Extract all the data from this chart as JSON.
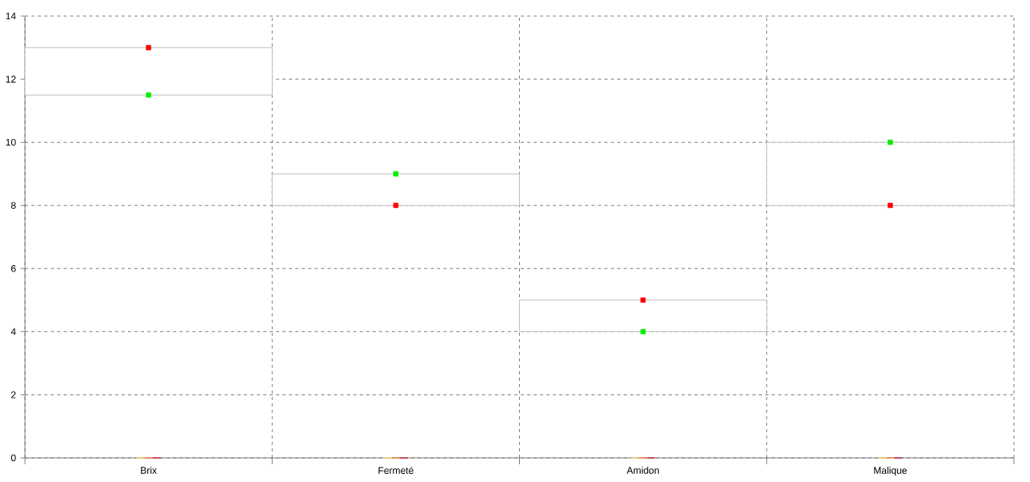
{
  "chart_data": {
    "type": "bar",
    "categories": [
      "Brix",
      "Fermeté",
      "Amidon",
      "Malique"
    ],
    "series": [
      {
        "color": "#c0c0c0",
        "base": [
          11.5,
          8,
          4,
          8
        ],
        "values": [
          1.5,
          1,
          1,
          2
        ]
      },
      {
        "type": "scatter",
        "color": "#ff0000",
        "values": [
          13,
          8,
          5,
          8
        ]
      },
      {
        "type": "scatter",
        "color": "#00ee00",
        "values": [
          11.5,
          9,
          4,
          10
        ]
      },
      {
        "color": "#f5d76e",
        "values": [
          0,
          0,
          0,
          0
        ]
      },
      {
        "color": "#f08c50",
        "values": [
          0,
          0,
          0,
          0
        ]
      },
      {
        "color": "#d2304a",
        "values": [
          0,
          0,
          0,
          0
        ]
      }
    ],
    "ylim": [
      0,
      14
    ],
    "yticks": [
      0,
      2,
      4,
      6,
      8,
      10,
      12,
      14
    ],
    "grid": true
  }
}
